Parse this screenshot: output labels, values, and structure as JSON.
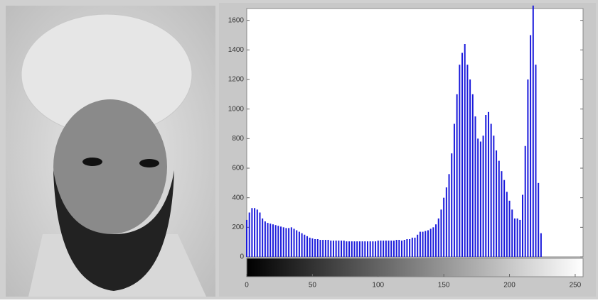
{
  "chart_data": {
    "type": "bar",
    "color": "#1a1adb",
    "x": [
      0,
      2,
      4,
      6,
      8,
      10,
      12,
      14,
      16,
      18,
      20,
      22,
      24,
      26,
      28,
      30,
      32,
      34,
      36,
      38,
      40,
      42,
      44,
      46,
      48,
      50,
      52,
      54,
      56,
      58,
      60,
      62,
      64,
      66,
      68,
      70,
      72,
      74,
      76,
      78,
      80,
      82,
      84,
      86,
      88,
      90,
      92,
      94,
      96,
      98,
      100,
      102,
      104,
      106,
      108,
      110,
      112,
      114,
      116,
      118,
      120,
      122,
      124,
      126,
      128,
      130,
      132,
      134,
      136,
      138,
      140,
      142,
      144,
      146,
      148,
      150,
      152,
      154,
      156,
      158,
      160,
      162,
      164,
      166,
      168,
      170,
      172,
      174,
      176,
      178,
      180,
      182,
      184,
      186,
      188,
      190,
      192,
      194,
      196,
      198,
      200,
      202,
      204,
      206,
      208,
      210,
      212,
      214,
      216,
      218,
      220,
      222,
      224
    ],
    "values": [
      250,
      300,
      330,
      330,
      320,
      300,
      260,
      240,
      230,
      225,
      220,
      215,
      210,
      205,
      200,
      195,
      195,
      200,
      190,
      180,
      170,
      160,
      150,
      140,
      130,
      125,
      120,
      120,
      115,
      115,
      115,
      115,
      110,
      110,
      110,
      110,
      110,
      110,
      105,
      105,
      105,
      105,
      105,
      105,
      105,
      105,
      105,
      105,
      105,
      105,
      110,
      110,
      110,
      110,
      110,
      110,
      110,
      115,
      115,
      110,
      115,
      120,
      120,
      130,
      130,
      150,
      170,
      170,
      175,
      180,
      190,
      200,
      220,
      260,
      320,
      400,
      470,
      560,
      700,
      900,
      1100,
      1300,
      1380,
      1440,
      1300,
      1200,
      1100,
      950,
      800,
      780,
      820,
      960,
      980,
      900,
      820,
      720,
      650,
      580,
      520,
      440,
      380,
      320,
      260,
      260,
      250,
      420,
      750,
      1200,
      1500,
      1700,
      1300,
      500,
      160
    ],
    "xlim": [
      0,
      256
    ],
    "xticks": [
      0,
      50,
      100,
      150,
      200,
      250
    ],
    "ylim": [
      0,
      1680
    ],
    "yticks": [
      0,
      200,
      400,
      600,
      800,
      1000,
      1200,
      1400,
      1600
    ]
  }
}
